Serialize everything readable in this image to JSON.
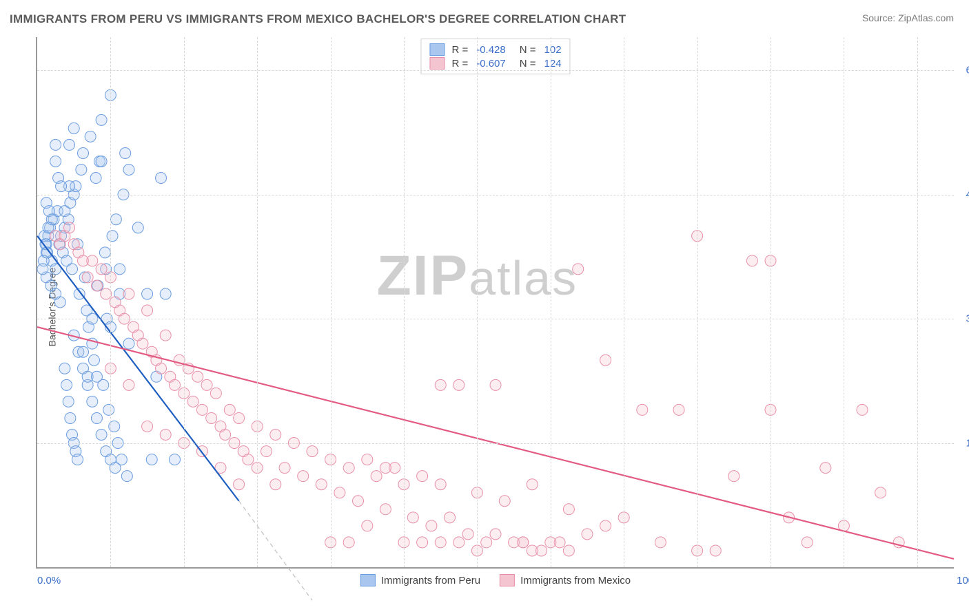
{
  "title": "IMMIGRANTS FROM PERU VS IMMIGRANTS FROM MEXICO BACHELOR'S DEGREE CORRELATION CHART",
  "source_label": "Source: ",
  "source_name": "ZipAtlas.com",
  "ylabel": "Bachelor's Degree",
  "watermark_a": "ZIP",
  "watermark_b": "atlas",
  "chart": {
    "type": "scatter_with_regression",
    "background": "#ffffff",
    "grid_color": "#d8d8d8",
    "axis_color": "#999999",
    "tick_label_color": "#3b6fc9",
    "label_color": "#555555",
    "title_color": "#5a5a5a",
    "title_fontsize": 17,
    "tick_fontsize": 15,
    "label_fontsize": 14,
    "xlim": [
      0,
      100
    ],
    "ylim": [
      0,
      64
    ],
    "xticks_labels": {
      "left": "0.0%",
      "right": "100.0%"
    },
    "yticks": [
      15,
      30,
      45,
      60
    ],
    "ytick_labels": [
      "15.0%",
      "30.0%",
      "45.0%",
      "60.0%"
    ],
    "x_minor_gridlines": [
      8,
      16,
      24,
      32,
      40,
      48,
      56,
      64,
      72,
      80,
      88,
      96
    ],
    "marker_radius": 8,
    "marker_stroke_width": 1,
    "marker_fill_opacity": 0.3,
    "series": [
      {
        "name": "Immigrants from Peru",
        "color_stroke": "#6a9ce0",
        "color_fill": "#a9c6ef",
        "R": "-0.428",
        "N": "102",
        "regression": {
          "x1": 0,
          "y1": 40,
          "x2": 22,
          "y2": 8,
          "color": "#1f5fc2",
          "width": 2.2,
          "dash_ext": {
            "x2": 30,
            "y2": -4,
            "dash": "6,5",
            "color": "#bfbfbf"
          }
        },
        "points": [
          [
            1,
            38
          ],
          [
            1,
            39
          ],
          [
            1.2,
            40
          ],
          [
            1.4,
            41
          ],
          [
            1.6,
            37
          ],
          [
            1.8,
            42
          ],
          [
            2,
            36
          ],
          [
            2.2,
            43
          ],
          [
            2.4,
            39
          ],
          [
            2.6,
            40
          ],
          [
            2.8,
            38
          ],
          [
            3,
            41
          ],
          [
            3.2,
            37
          ],
          [
            3.4,
            42
          ],
          [
            3.6,
            44
          ],
          [
            3.8,
            36
          ],
          [
            4,
            45
          ],
          [
            4.2,
            46
          ],
          [
            4.4,
            39
          ],
          [
            4.6,
            33
          ],
          [
            4.8,
            48
          ],
          [
            5,
            50
          ],
          [
            5.2,
            35
          ],
          [
            5.4,
            31
          ],
          [
            5.6,
            29
          ],
          [
            5.8,
            52
          ],
          [
            6,
            27
          ],
          [
            6.2,
            25
          ],
          [
            6.4,
            47
          ],
          [
            6.6,
            34
          ],
          [
            6.8,
            49
          ],
          [
            7,
            54
          ],
          [
            7.2,
            22
          ],
          [
            7.4,
            38
          ],
          [
            7.6,
            30
          ],
          [
            7.8,
            19
          ],
          [
            8,
            57
          ],
          [
            8.2,
            40
          ],
          [
            8.4,
            17
          ],
          [
            8.6,
            42
          ],
          [
            8.8,
            15
          ],
          [
            9,
            33
          ],
          [
            9.2,
            13
          ],
          [
            9.4,
            45
          ],
          [
            9.6,
            50
          ],
          [
            9.8,
            11
          ],
          [
            10,
            48
          ],
          [
            1,
            35
          ],
          [
            1.5,
            34
          ],
          [
            2,
            33
          ],
          [
            2.5,
            32
          ],
          [
            3,
            43
          ],
          [
            3.5,
            46
          ],
          [
            4,
            28
          ],
          [
            4.5,
            26
          ],
          [
            5,
            24
          ],
          [
            5.5,
            22
          ],
          [
            6,
            20
          ],
          [
            6.5,
            18
          ],
          [
            7,
            16
          ],
          [
            7.5,
            14
          ],
          [
            8,
            13
          ],
          [
            8.5,
            12
          ],
          [
            3,
            24
          ],
          [
            3.2,
            22
          ],
          [
            3.4,
            20
          ],
          [
            3.6,
            18
          ],
          [
            3.8,
            16
          ],
          [
            4,
            15
          ],
          [
            4.2,
            14
          ],
          [
            4.4,
            13
          ],
          [
            5,
            26
          ],
          [
            5.5,
            23
          ],
          [
            6,
            30
          ],
          [
            6.5,
            23
          ],
          [
            7,
            49
          ],
          [
            7.5,
            36
          ],
          [
            8,
            29
          ],
          [
            9,
            36
          ],
          [
            10,
            27
          ],
          [
            11,
            41
          ],
          [
            12,
            33
          ],
          [
            12.5,
            13
          ],
          [
            13,
            23
          ],
          [
            13.5,
            47
          ],
          [
            14,
            33
          ],
          [
            15,
            13
          ],
          [
            2,
            49
          ],
          [
            2.3,
            47
          ],
          [
            2.6,
            46
          ],
          [
            1,
            44
          ],
          [
            1.3,
            43
          ],
          [
            1.6,
            42
          ],
          [
            0.8,
            40
          ],
          [
            0.9,
            39
          ],
          [
            1.1,
            38
          ],
          [
            1.2,
            41
          ],
          [
            0.7,
            37
          ],
          [
            0.6,
            36
          ],
          [
            3.5,
            51
          ],
          [
            4,
            53
          ],
          [
            2,
            51
          ]
        ]
      },
      {
        "name": "Immigrants from Mexico",
        "color_stroke": "#e890a8",
        "color_fill": "#f5c4d1",
        "R": "-0.607",
        "N": "124",
        "regression": {
          "x1": 0,
          "y1": 29,
          "x2": 100,
          "y2": 1,
          "color": "#e35a82",
          "width": 2.2
        },
        "points": [
          [
            2,
            40
          ],
          [
            2.5,
            39
          ],
          [
            3,
            40
          ],
          [
            3.5,
            41
          ],
          [
            4,
            39
          ],
          [
            4.5,
            38
          ],
          [
            5,
            37
          ],
          [
            5.5,
            35
          ],
          [
            6,
            37
          ],
          [
            6.5,
            34
          ],
          [
            7,
            36
          ],
          [
            7.5,
            33
          ],
          [
            8,
            35
          ],
          [
            8.5,
            32
          ],
          [
            9,
            31
          ],
          [
            9.5,
            30
          ],
          [
            10,
            33
          ],
          [
            10.5,
            29
          ],
          [
            11,
            28
          ],
          [
            11.5,
            27
          ],
          [
            12,
            31
          ],
          [
            12.5,
            26
          ],
          [
            13,
            25
          ],
          [
            13.5,
            24
          ],
          [
            14,
            28
          ],
          [
            14.5,
            23
          ],
          [
            15,
            22
          ],
          [
            15.5,
            25
          ],
          [
            16,
            21
          ],
          [
            16.5,
            24
          ],
          [
            17,
            20
          ],
          [
            17.5,
            23
          ],
          [
            18,
            19
          ],
          [
            18.5,
            22
          ],
          [
            19,
            18
          ],
          [
            19.5,
            21
          ],
          [
            20,
            17
          ],
          [
            20.5,
            16
          ],
          [
            21,
            19
          ],
          [
            21.5,
            15
          ],
          [
            22,
            18
          ],
          [
            22.5,
            14
          ],
          [
            23,
            13
          ],
          [
            24,
            17
          ],
          [
            25,
            14
          ],
          [
            26,
            16
          ],
          [
            27,
            12
          ],
          [
            28,
            15
          ],
          [
            29,
            11
          ],
          [
            30,
            14
          ],
          [
            31,
            10
          ],
          [
            32,
            13
          ],
          [
            33,
            9
          ],
          [
            34,
            12
          ],
          [
            35,
            8
          ],
          [
            36,
            13
          ],
          [
            37,
            11
          ],
          [
            38,
            7
          ],
          [
            39,
            12
          ],
          [
            40,
            10
          ],
          [
            41,
            6
          ],
          [
            42,
            11
          ],
          [
            43,
            5
          ],
          [
            44,
            10
          ],
          [
            45,
            6
          ],
          [
            46,
            22
          ],
          [
            47,
            4
          ],
          [
            48,
            9
          ],
          [
            49,
            3
          ],
          [
            50,
            4
          ],
          [
            51,
            8
          ],
          [
            52,
            3
          ],
          [
            53,
            3
          ],
          [
            54,
            2
          ],
          [
            55,
            2
          ],
          [
            44,
            22
          ],
          [
            57,
            3
          ],
          [
            58,
            7
          ],
          [
            59,
            36
          ],
          [
            60,
            4
          ],
          [
            62,
            25
          ],
          [
            64,
            6
          ],
          [
            66,
            19
          ],
          [
            68,
            3
          ],
          [
            70,
            19
          ],
          [
            72,
            40
          ],
          [
            74,
            2
          ],
          [
            76,
            11
          ],
          [
            78,
            37
          ],
          [
            80,
            19
          ],
          [
            82,
            6
          ],
          [
            84,
            3
          ],
          [
            86,
            12
          ],
          [
            88,
            5
          ],
          [
            90,
            19
          ],
          [
            92,
            9
          ],
          [
            94,
            3
          ],
          [
            80,
            37
          ],
          [
            72,
            2
          ],
          [
            62,
            5
          ],
          [
            50,
            22
          ],
          [
            53,
            3
          ],
          [
            54,
            10
          ],
          [
            56,
            3
          ],
          [
            58,
            2
          ],
          [
            48,
            2
          ],
          [
            46,
            3
          ],
          [
            44,
            3
          ],
          [
            42,
            3
          ],
          [
            40,
            3
          ],
          [
            38,
            12
          ],
          [
            36,
            5
          ],
          [
            34,
            3
          ],
          [
            32,
            3
          ],
          [
            26,
            10
          ],
          [
            24,
            12
          ],
          [
            22,
            10
          ],
          [
            20,
            12
          ],
          [
            18,
            14
          ],
          [
            16,
            15
          ],
          [
            14,
            16
          ],
          [
            12,
            17
          ],
          [
            10,
            22
          ],
          [
            8,
            24
          ]
        ]
      }
    ]
  },
  "legend_bottom": [
    {
      "label": "Immigrants from Peru",
      "fill": "#a9c6ef",
      "stroke": "#6a9ce0"
    },
    {
      "label": "Immigrants from Mexico",
      "fill": "#f5c4d1",
      "stroke": "#e890a8"
    }
  ]
}
